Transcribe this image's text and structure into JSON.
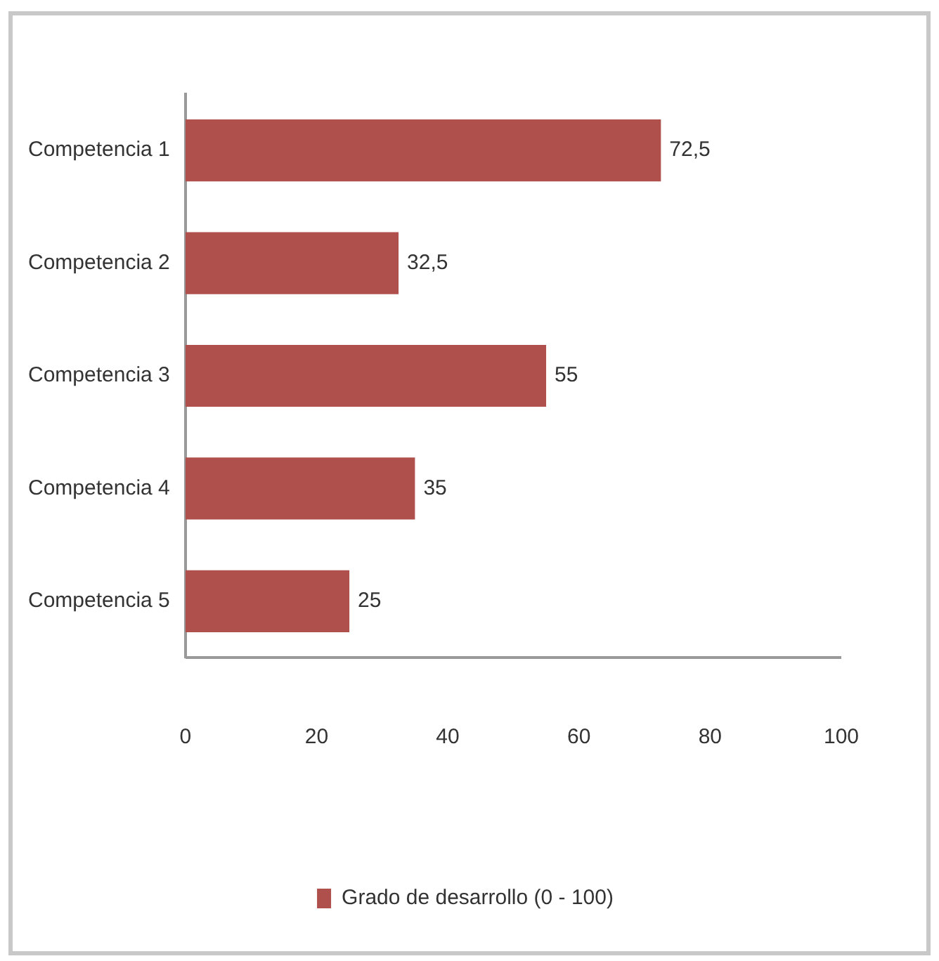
{
  "chart_data": {
    "type": "bar",
    "orientation": "horizontal",
    "categories": [
      "Competencia 1",
      "Competencia 2",
      "Competencia 3",
      "Competencia 4",
      "Competencia 5"
    ],
    "series": [
      {
        "name": "Grado de desarrollo (0 - 100)",
        "color": "#b0504d",
        "values": [
          72.5,
          32.5,
          55,
          35,
          25
        ],
        "value_labels": [
          "72,5",
          "32,5",
          "55",
          "35",
          "25"
        ]
      }
    ],
    "xlim": [
      0,
      100
    ],
    "xticks": [
      0,
      20,
      40,
      60,
      80,
      100
    ],
    "grid": false,
    "legend": "bottom"
  }
}
